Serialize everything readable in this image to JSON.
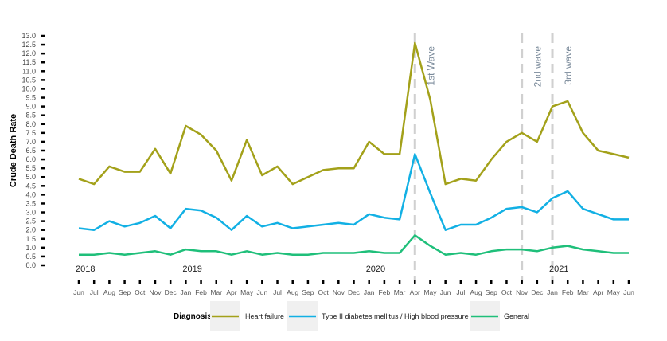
{
  "chart_data": {
    "type": "line",
    "title": "",
    "ylabel": "Crude Death Rate",
    "xlabel": "",
    "ylim": [
      0,
      13
    ],
    "y_ticks": [
      "0.0",
      "0.5",
      "1.0",
      "1.5",
      "2.0",
      "2.5",
      "3.0",
      "3.5",
      "4.0",
      "4.5",
      "5.0",
      "5.5",
      "6.0",
      "6.5",
      "7.0",
      "7.5",
      "8.0",
      "8.5",
      "9.0",
      "9.5",
      "10.0",
      "10.5",
      "11.0",
      "11.5",
      "12.0",
      "12.5",
      "13.0"
    ],
    "categories": [
      "Jun",
      "Jul",
      "Aug",
      "Sep",
      "Oct",
      "Nov",
      "Dec",
      "Jan",
      "Feb",
      "Mar",
      "Apr",
      "May",
      "Jun",
      "Jul",
      "Aug",
      "Sep",
      "Oct",
      "Nov",
      "Dec",
      "Jan",
      "Feb",
      "Mar",
      "Apr",
      "May",
      "Jun",
      "Jul",
      "Aug",
      "Sep",
      "Oct",
      "Nov",
      "Dec",
      "Jan",
      "Feb",
      "Mar",
      "Apr",
      "May",
      "Jun"
    ],
    "year_labels": [
      {
        "label": "2018",
        "index": 0
      },
      {
        "label": "2019",
        "index": 7
      },
      {
        "label": "2020",
        "index": 19
      },
      {
        "label": "2021",
        "index": 31
      }
    ],
    "annotations": [
      {
        "label": "1st Wave",
        "index": 22
      },
      {
        "label": "2nd wave",
        "index": 29
      },
      {
        "label": "3rd wave",
        "index": 31
      }
    ],
    "grid": false,
    "legend": {
      "placement": "bottom",
      "title": "Diagnosis"
    },
    "series": [
      {
        "name": "Heart failure",
        "color": "#a3a11a",
        "values": [
          4.9,
          4.6,
          5.6,
          5.3,
          5.3,
          6.6,
          5.2,
          7.9,
          7.4,
          6.5,
          4.8,
          7.1,
          5.1,
          5.6,
          4.6,
          5.0,
          5.4,
          5.5,
          5.5,
          7.0,
          6.3,
          6.3,
          12.6,
          9.4,
          4.6,
          4.9,
          4.8,
          6.0,
          7.0,
          7.5,
          7.0,
          9.0,
          9.3,
          7.5,
          6.5,
          6.3,
          6.1
        ]
      },
      {
        "name": "Type II diabetes mellitus / High blood pressure",
        "color": "#12b0e4",
        "values": [
          2.1,
          2.0,
          2.5,
          2.2,
          2.4,
          2.8,
          2.1,
          3.2,
          3.1,
          2.7,
          2.0,
          2.8,
          2.2,
          2.4,
          2.1,
          2.2,
          2.3,
          2.4,
          2.3,
          2.9,
          2.7,
          2.6,
          6.3,
          4.1,
          2.0,
          2.3,
          2.3,
          2.7,
          3.2,
          3.3,
          3.0,
          3.8,
          4.2,
          3.2,
          2.9,
          2.6,
          2.6
        ]
      },
      {
        "name": "General",
        "color": "#1fbf7a",
        "values": [
          0.6,
          0.6,
          0.7,
          0.6,
          0.7,
          0.8,
          0.6,
          0.9,
          0.8,
          0.8,
          0.6,
          0.8,
          0.6,
          0.7,
          0.6,
          0.6,
          0.7,
          0.7,
          0.7,
          0.8,
          0.7,
          0.7,
          1.7,
          1.1,
          0.6,
          0.7,
          0.6,
          0.8,
          0.9,
          0.9,
          0.8,
          1.0,
          1.1,
          0.9,
          0.8,
          0.7,
          0.7
        ]
      }
    ]
  }
}
